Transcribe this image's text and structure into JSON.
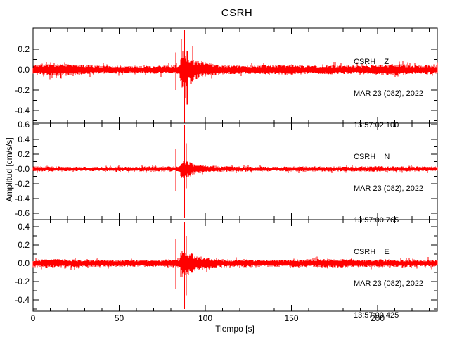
{
  "chart_data": {
    "type": "line",
    "title": "CSRH",
    "xlabel": "Tiempo [s]",
    "ylabel": "Amplitud [cm/s/s]",
    "trace_color": "#ff0000",
    "axis_color": "#000000",
    "background_color": "#ffffff",
    "x_range": [
      0,
      234.7
    ],
    "x_major_ticks": [
      0,
      50,
      100,
      150,
      200
    ],
    "x_minor_step": 10,
    "panels": [
      {
        "id": "Z",
        "station_line": "CSRH    Z",
        "date_line": "MAR 23 (082), 2022",
        "time_line": "13:57:02.100",
        "ylim": [
          -0.524,
          0.407
        ],
        "y_major_ticks": [
          {
            "value": 0.2,
            "label": "0.2"
          },
          {
            "value": 0.0,
            "label": "0.0"
          },
          {
            "value": -0.2,
            "label": "-0.2"
          },
          {
            "value": -0.4,
            "label": "-0.4"
          }
        ],
        "y_minor_step": 0.1,
        "noise_envelope": [
          [
            0,
            0.047
          ],
          [
            8,
            0.055
          ],
          [
            18,
            0.06
          ],
          [
            28,
            0.048
          ],
          [
            40,
            0.04
          ],
          [
            55,
            0.036
          ],
          [
            70,
            0.04
          ],
          [
            80,
            0.042
          ],
          [
            96,
            0.05
          ],
          [
            110,
            0.045
          ],
          [
            125,
            0.042
          ],
          [
            140,
            0.05
          ],
          [
            148,
            0.055
          ],
          [
            160,
            0.042
          ],
          [
            176,
            0.045
          ],
          [
            190,
            0.042
          ],
          [
            205,
            0.055
          ],
          [
            212,
            0.058
          ],
          [
            222,
            0.045
          ],
          [
            235,
            0.045
          ]
        ],
        "event": {
          "burst_t0": 84.8,
          "burst_t1": 93,
          "burst_amp": 0.21,
          "coda_tau": 20
        },
        "spikes": [
          {
            "t": 82.9,
            "up": 0.17,
            "down": 0.2,
            "w": 1.5
          },
          {
            "t": 87.7,
            "up": 0.39,
            "down": 0.52,
            "w": 2
          },
          {
            "t": 89.5,
            "up": 0.18,
            "down": 0.34,
            "w": 1.5
          }
        ]
      },
      {
        "id": "N",
        "station_line": "CSRH    N",
        "date_line": "MAR 23 (082), 2022",
        "time_line": "13:57:00.765",
        "ylim": [
          -0.686,
          0.619
        ],
        "y_major_ticks": [
          {
            "value": 0.6,
            "label": "0.6"
          },
          {
            "value": 0.4,
            "label": "0.4"
          },
          {
            "value": 0.2,
            "label": "0.2"
          },
          {
            "value": 0.0,
            "label": "-0.0"
          },
          {
            "value": -0.2,
            "label": "-0.2"
          },
          {
            "value": -0.4,
            "label": "-0.4"
          },
          {
            "value": -0.6,
            "label": "-0.6"
          }
        ],
        "y_minor_step": 0.1,
        "noise_envelope": [
          [
            0,
            0.036
          ],
          [
            20,
            0.032
          ],
          [
            40,
            0.03
          ],
          [
            60,
            0.032
          ],
          [
            80,
            0.035
          ],
          [
            100,
            0.04
          ],
          [
            118,
            0.036
          ],
          [
            140,
            0.032
          ],
          [
            160,
            0.035
          ],
          [
            180,
            0.035
          ],
          [
            200,
            0.038
          ],
          [
            220,
            0.033
          ],
          [
            235,
            0.035
          ]
        ],
        "event": {
          "burst_t0": 84.8,
          "burst_t1": 93,
          "burst_amp": 0.15,
          "coda_tau": 22
        },
        "spikes": [
          {
            "t": 82.9,
            "up": 0.27,
            "down": 0.3,
            "w": 1.5
          },
          {
            "t": 87.7,
            "up": 0.6,
            "down": 0.66,
            "w": 2
          },
          {
            "t": 88.8,
            "up": 0.35,
            "down": 0.26,
            "w": 1.5
          }
        ]
      },
      {
        "id": "E",
        "station_line": "CSRH    E",
        "date_line": "MAR 23 (082), 2022",
        "time_line": "13:57:00.425",
        "ylim": [
          -0.523,
          0.477
        ],
        "y_major_ticks": [
          {
            "value": 0.4,
            "label": "0.4"
          },
          {
            "value": 0.2,
            "label": "0.2"
          },
          {
            "value": 0.0,
            "label": "0.0"
          },
          {
            "value": -0.2,
            "label": "-0.2"
          },
          {
            "value": -0.4,
            "label": "-0.4"
          }
        ],
        "y_minor_step": 0.1,
        "noise_envelope": [
          [
            0,
            0.042
          ],
          [
            15,
            0.048
          ],
          [
            30,
            0.04
          ],
          [
            50,
            0.038
          ],
          [
            70,
            0.04
          ],
          [
            85,
            0.045
          ],
          [
            100,
            0.05
          ],
          [
            120,
            0.042
          ],
          [
            140,
            0.04
          ],
          [
            160,
            0.045
          ],
          [
            175,
            0.05
          ],
          [
            190,
            0.042
          ],
          [
            205,
            0.045
          ],
          [
            220,
            0.04
          ],
          [
            235,
            0.042
          ]
        ],
        "event": {
          "burst_t0": 84.8,
          "burst_t1": 93,
          "burst_amp": 0.175,
          "coda_tau": 24
        },
        "spikes": [
          {
            "t": 82.9,
            "up": 0.27,
            "down": 0.28,
            "w": 1.5
          },
          {
            "t": 87.7,
            "up": 0.45,
            "down": 0.5,
            "w": 2
          },
          {
            "t": 88.8,
            "up": 0.3,
            "down": 0.35,
            "w": 1.5
          }
        ]
      }
    ]
  }
}
